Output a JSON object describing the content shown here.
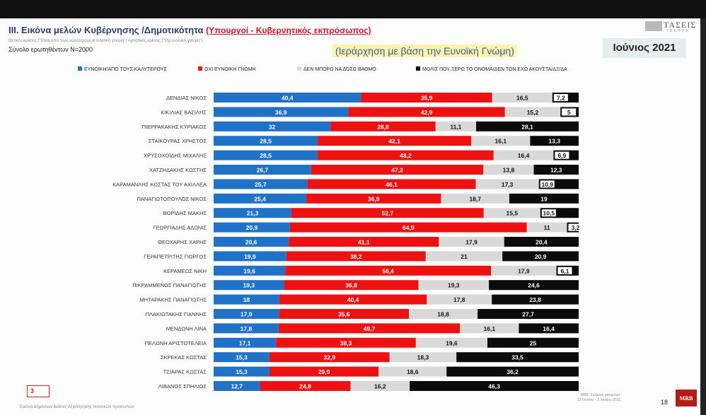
{
  "header": {
    "title_prefix": "ΙΙΙ. Εικόνα μελών Κυβέρνησης /Δημοτικότητα",
    "title_highlight": "(Υπουργοί - Κυβερνητικός εκπρόσωπος)",
    "subnote": "Θετικές κρίσεις (\"Είναι από τους καλύτερους & ευνοϊκή γνώμη\") Αρνητικές κρίσεις (\"Όχι ευνοϊκή γνώμη\")",
    "sample": "Σύνολο ερωτηθέντων Ν=2000",
    "ranking_note": "(Ιεράρχηση με βάση την Ευνοϊκή Γνώμη)",
    "month": "Ιούνιος 2021",
    "logo_text": "ΤΑΣΕΙΣ",
    "logo_sub": "TRENDS"
  },
  "colors": {
    "favorable": "#1f72c8",
    "unfavorable": "#ee1111",
    "cannot_say": "#d9d9d9",
    "unknown": "#0b0b0b"
  },
  "chart_data": {
    "type": "bar",
    "orientation": "horizontal",
    "stacked": true,
    "xlim": [
      0,
      100
    ],
    "categories": [
      "ΔΕΝΔΙΑΣ ΝΙΚΟΣ",
      "ΚΙΚΙΛΙΑΣ ΒΑΣΙΛΗΣ",
      "ΠΙΕΡΡΑΚΑΚΗΣ ΚΥΡΙΑΚΟΣ",
      "ΣΤΑΪΚΟΥΡΑΣ ΧΡΗΣΤΟΣ",
      "ΧΡΥΣΟΧΟΪΔΗΣ ΜΙΧΑΛΗΣ",
      "ΧΑΤΖΗΔΑΚΗΣ ΚΩΣΤΗΣ",
      "ΚΑΡΑΜΑΝΛΗΣ ΚΩΣΤΑΣ ΤΟΥ ΑΧΙΛΛΕΑ",
      "ΠΑΝΑΓΙΩΤΟΠΟΥΛΟΣ ΝΙΚΟΣ",
      "ΒΟΡΙΔΗΣ ΜΑΚΗΣ",
      "ΓΕΩΡΓΙΑΔΗΣ ΑΔΩΝΙΣ",
      "ΘΕΟΧΑΡΗΣ ΧΑΡΗΣ",
      "ΓΕΡΑΠΕΤΡΙΤΗΣ ΓΙΩΡΓΟΣ",
      "ΚΕΡΑΜΕΩΣ ΝΙΚΗ",
      "ΠΙΚΡΑΜΜΕΝΟΣ ΠΑΝΑΓΙΩΤΗΣ",
      "ΜΗΤΑΡΑΚΗΣ ΠΑΝΑΓΙΩΤΗΣ",
      "ΠΛΑΚΙΩΤΑΚΗΣ ΓΙΑΝΝΗΣ",
      "ΜΕΝΔΩΝΗ ΛΙΝΑ",
      "ΠΕΛΩΝΗ ΑΡΙΣΤΟΤΕΛΕΙΑ",
      "ΣΚΡΕΚΑΣ ΚΩΣΤΑΣ",
      "ΤΣΙΑΡΑΣ ΚΩΣΤΑΣ",
      "ΛΙΒΑΝΟΣ ΣΠΗΛΙΟΣ"
    ],
    "series": [
      {
        "name": "ΕΥΝΟΙΚΗ/ΑΠΟ ΤΟΥΣ ΚΑΛΥΤΕΡΟΥΣ",
        "key": "favorable",
        "values": [
          40.4,
          36.9,
          32,
          28.5,
          28.5,
          26.7,
          25.7,
          25.4,
          21.3,
          20.9,
          20.6,
          19.9,
          19.6,
          19.3,
          18,
          17.9,
          17.8,
          17.1,
          15.3,
          15.3,
          12.7
        ]
      },
      {
        "name": "ΟΧΙ ΕΥΝΟΙΚΗ ΓΝΩΜΗ",
        "key": "unfavorable",
        "values": [
          35.9,
          42.9,
          28.8,
          42.1,
          48.2,
          47.2,
          46.1,
          36.9,
          52.7,
          64.9,
          41.1,
          38.2,
          56.4,
          36.8,
          40.4,
          35.6,
          49.7,
          38.3,
          32.9,
          29.9,
          24.8
        ]
      },
      {
        "name": "ΔΕΝ ΜΠΟΡΩ ΝΑ ΔΩΣΩ ΒΑΘΜΟ",
        "key": "cannot_say",
        "values": [
          16.5,
          15.2,
          11.1,
          16.1,
          16.4,
          13.8,
          17.3,
          18.7,
          15.5,
          11,
          17.9,
          21,
          17.9,
          19.3,
          17.8,
          18.8,
          16.1,
          19.6,
          18.3,
          18.6,
          16.2
        ]
      },
      {
        "name": "ΜΟΛΙΣ ΠΟΥ ΞΕΡΩ ΤΟ ΟΝΟΜΑ/ΔΕΝ ΤΟΝ ΕΧΩ ΑΚΟΥΣΤΑ/ΔΞ/ΔΑ",
        "key": "unknown",
        "values": [
          7.2,
          5,
          28.1,
          13.3,
          6.9,
          12.3,
          10.9,
          19,
          10.5,
          3.2,
          20.4,
          20.9,
          6.1,
          24.6,
          23.8,
          27.7,
          16.4,
          25,
          33.5,
          36.2,
          46.3
        ]
      }
    ]
  },
  "footer": {
    "page_box": "3",
    "note": "Εικόνα Δημόσιων Δείκτες Αξιολόγησης πολιτικών προσώπων",
    "mrb_note_1": "MRB. Συλλογή στοιχείων:",
    "mrb_note_2": "23 Ιουνίου – 1 Ιουλίου 2021",
    "slide_number": "18",
    "mrb_logo": "MRB"
  }
}
